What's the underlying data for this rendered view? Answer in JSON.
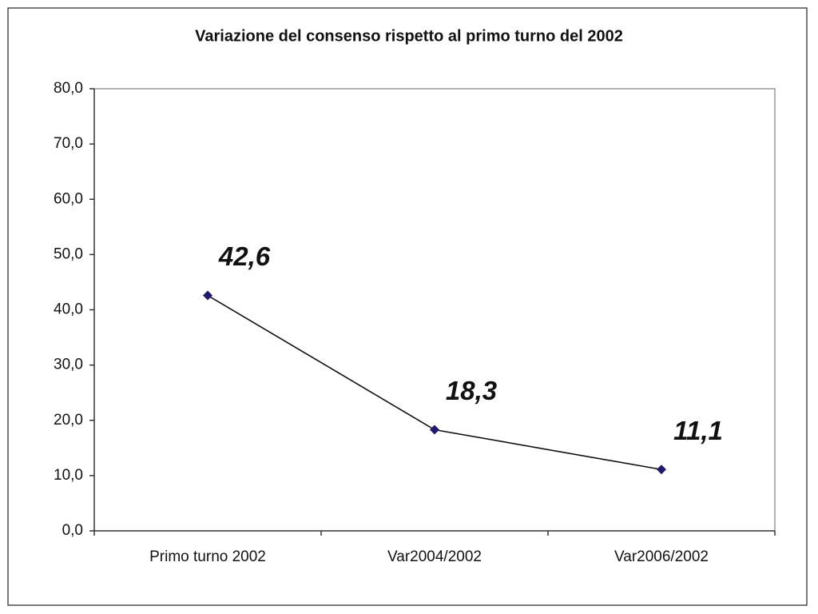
{
  "chart_data": {
    "type": "line",
    "title": "Variazione del consenso rispetto al primo turno del 2002",
    "categories": [
      "Primo turno 2002",
      "Var2004/2002",
      "Var2006/2002"
    ],
    "values": [
      42.6,
      18.3,
      11.1
    ],
    "value_labels": [
      "42,6",
      "18,3",
      "11,1"
    ],
    "color": "#1f1a6e",
    "line_color": "#111111",
    "ylim": [
      0,
      80
    ],
    "yticks": [
      {
        "value": 0,
        "label": "0,0"
      },
      {
        "value": 10,
        "label": "10,0"
      },
      {
        "value": 20,
        "label": "20,0"
      },
      {
        "value": 30,
        "label": "30,0"
      },
      {
        "value": 40,
        "label": "40,0"
      },
      {
        "value": 50,
        "label": "50,0"
      },
      {
        "value": 60,
        "label": "60,0"
      },
      {
        "value": 70,
        "label": "70,0"
      },
      {
        "value": 80,
        "label": "80,0"
      }
    ],
    "grid": false
  }
}
